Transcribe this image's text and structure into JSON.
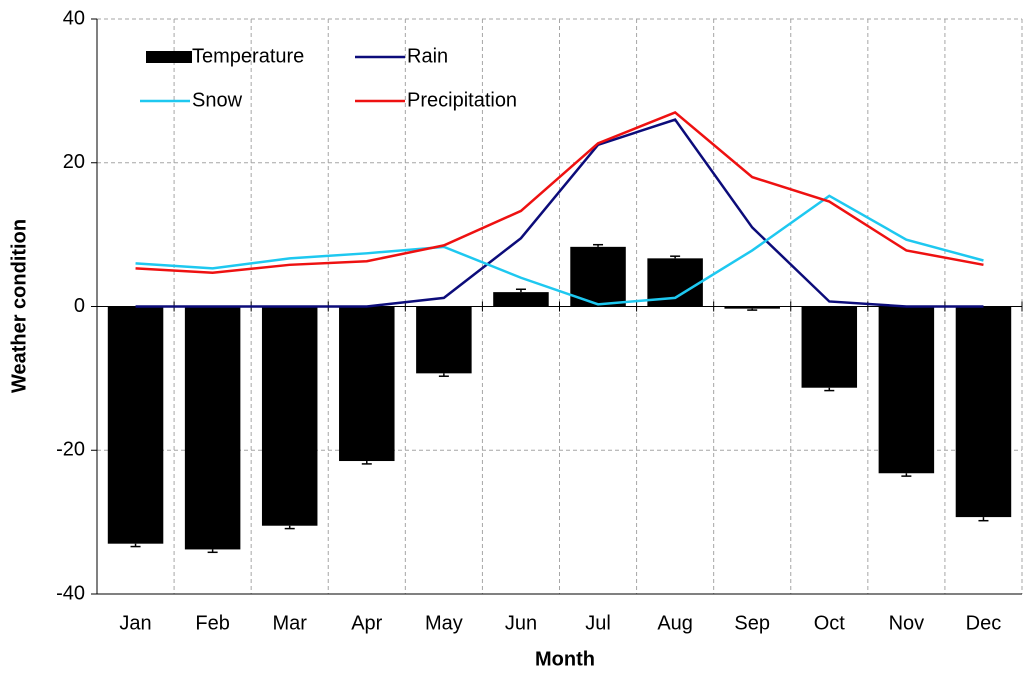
{
  "chart_data": {
    "type": "bar",
    "x_label": "Month",
    "y_label": "Weather condition",
    "categories": [
      "Jan",
      "Feb",
      "Mar",
      "Apr",
      "May",
      "Jun",
      "Jul",
      "Aug",
      "Sep",
      "Oct",
      "Nov",
      "Dec"
    ],
    "series": [
      {
        "name": "Temperature",
        "type": "bar",
        "color": "#000000",
        "values": [
          -33,
          -33.8,
          -30.5,
          -21.5,
          -9.3,
          2,
          8.3,
          6.7,
          -0.3,
          -11.3,
          -23.2,
          -29.3
        ],
        "errors": [
          0.4,
          0.4,
          0.4,
          0.4,
          0.4,
          0.4,
          0.3,
          0.3,
          0.2,
          0.4,
          0.4,
          0.5
        ]
      },
      {
        "name": "Rain",
        "type": "line",
        "color": "#0c0c7a",
        "values": [
          0,
          0,
          0,
          0,
          1.2,
          9.5,
          22.5,
          26,
          11,
          0.7,
          0,
          0
        ]
      },
      {
        "name": "Snow",
        "type": "line",
        "color": "#1ec8f0",
        "values": [
          6,
          5.3,
          6.7,
          7.4,
          8.3,
          4,
          0.3,
          1.2,
          7.8,
          15.4,
          9.3,
          6.4
        ]
      },
      {
        "name": "Precipitation",
        "type": "line",
        "color": "#ee1111",
        "values": [
          5.3,
          4.7,
          5.8,
          6.3,
          8.5,
          13.3,
          22.7,
          27,
          18,
          14.6,
          7.8,
          5.8
        ]
      }
    ],
    "ylim": [
      -40,
      40
    ],
    "yticks": [
      -40,
      -20,
      0,
      20,
      40
    ],
    "grid": true,
    "legend": "upper left"
  }
}
